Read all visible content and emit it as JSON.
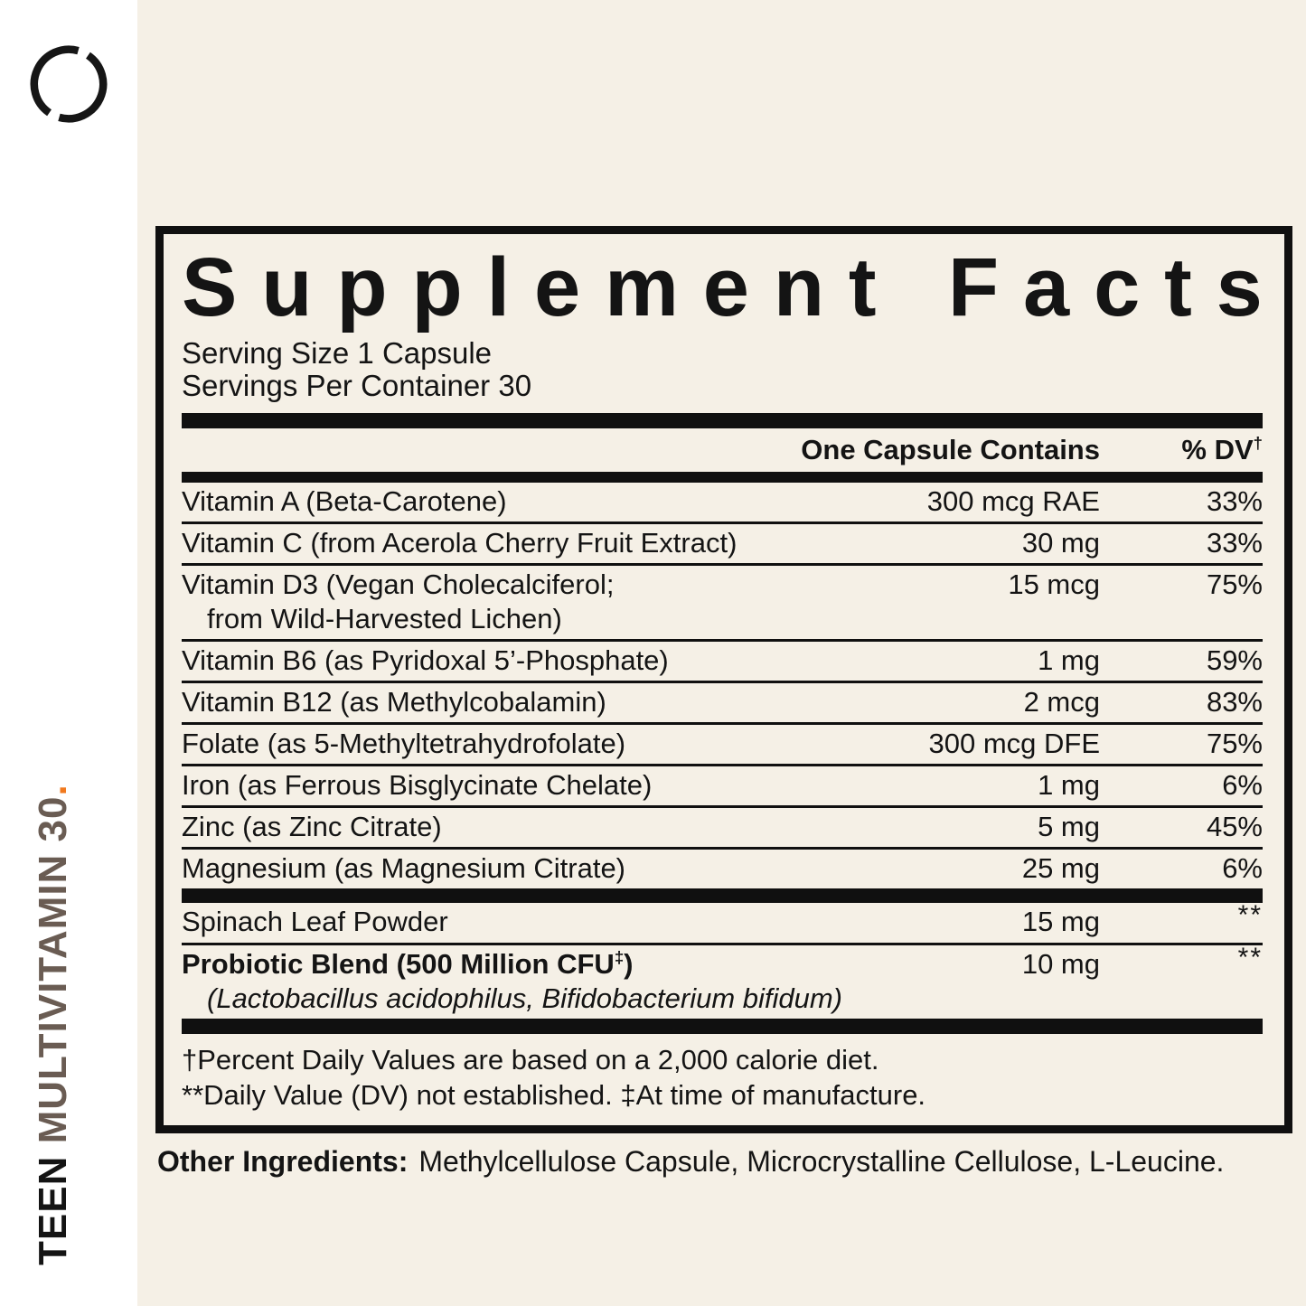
{
  "colors": {
    "cream_background": "#F5F0E6",
    "ink": "#141414",
    "brand_brown": "#6A5C53",
    "accent_orange": "#F1791E"
  },
  "brand": {
    "primary": "TEEN",
    "secondary": " MULTIVITAMIN 30",
    "dot": "."
  },
  "panel": {
    "title": "Supplement Facts",
    "serving_size": "Serving Size 1 Capsule",
    "servings_per_container": "Servings Per Container 30",
    "columns": {
      "contains": "One Capsule Contains",
      "dv": "% DV",
      "dv_sup": "†"
    },
    "rows_main": [
      {
        "name": "Vitamin A (Beta-Carotene)",
        "amount": "300 mcg RAE",
        "dv": "33%"
      },
      {
        "name": "Vitamin C (from Acerola Cherry Fruit Extract)",
        "amount": "30 mg",
        "dv": "33%"
      },
      {
        "name": "Vitamin D3 (Vegan Cholecalciferol;",
        "name2": "from Wild-Harvested Lichen)",
        "amount": "15 mcg",
        "dv": "75%"
      },
      {
        "name": "Vitamin B6 (as Pyridoxal 5’-Phosphate)",
        "amount": "1 mg",
        "dv": "59%"
      },
      {
        "name": "Vitamin B12 (as Methylcobalamin)",
        "amount": "2 mcg",
        "dv": "83%"
      },
      {
        "name": "Folate (as 5-Methyltetrahydrofolate)",
        "amount": "300 mcg DFE",
        "dv": "75%"
      },
      {
        "name": "Iron (as Ferrous Bisglycinate Chelate)",
        "amount": "1 mg",
        "dv": "6%"
      },
      {
        "name": "Zinc (as Zinc Citrate)",
        "amount": "5 mg",
        "dv": "45%"
      },
      {
        "name": "Magnesium (as Magnesium Citrate)",
        "amount": "25 mg",
        "dv": "6%"
      }
    ],
    "rows_other": [
      {
        "name": "Spinach Leaf Powder",
        "amount": "15 mg",
        "dv": "**"
      },
      {
        "name": "Probiotic Blend (500 Million CFU‡)",
        "bold": true,
        "name2": "(Lactobacillus acidophilus, Bifidobacterium bifidum)",
        "italic2": true,
        "amount": "10 mg",
        "dv": "**"
      }
    ],
    "footnotes": [
      "†Percent Daily Values are based on a 2,000 calorie diet.",
      "**Daily Value (DV) not established. ‡At time of manufacture."
    ]
  },
  "other_ingredients": {
    "label": "Other Ingredients:",
    "text": "Methylcellulose Capsule, Microcrystalline Cellulose, L-Leucine."
  }
}
